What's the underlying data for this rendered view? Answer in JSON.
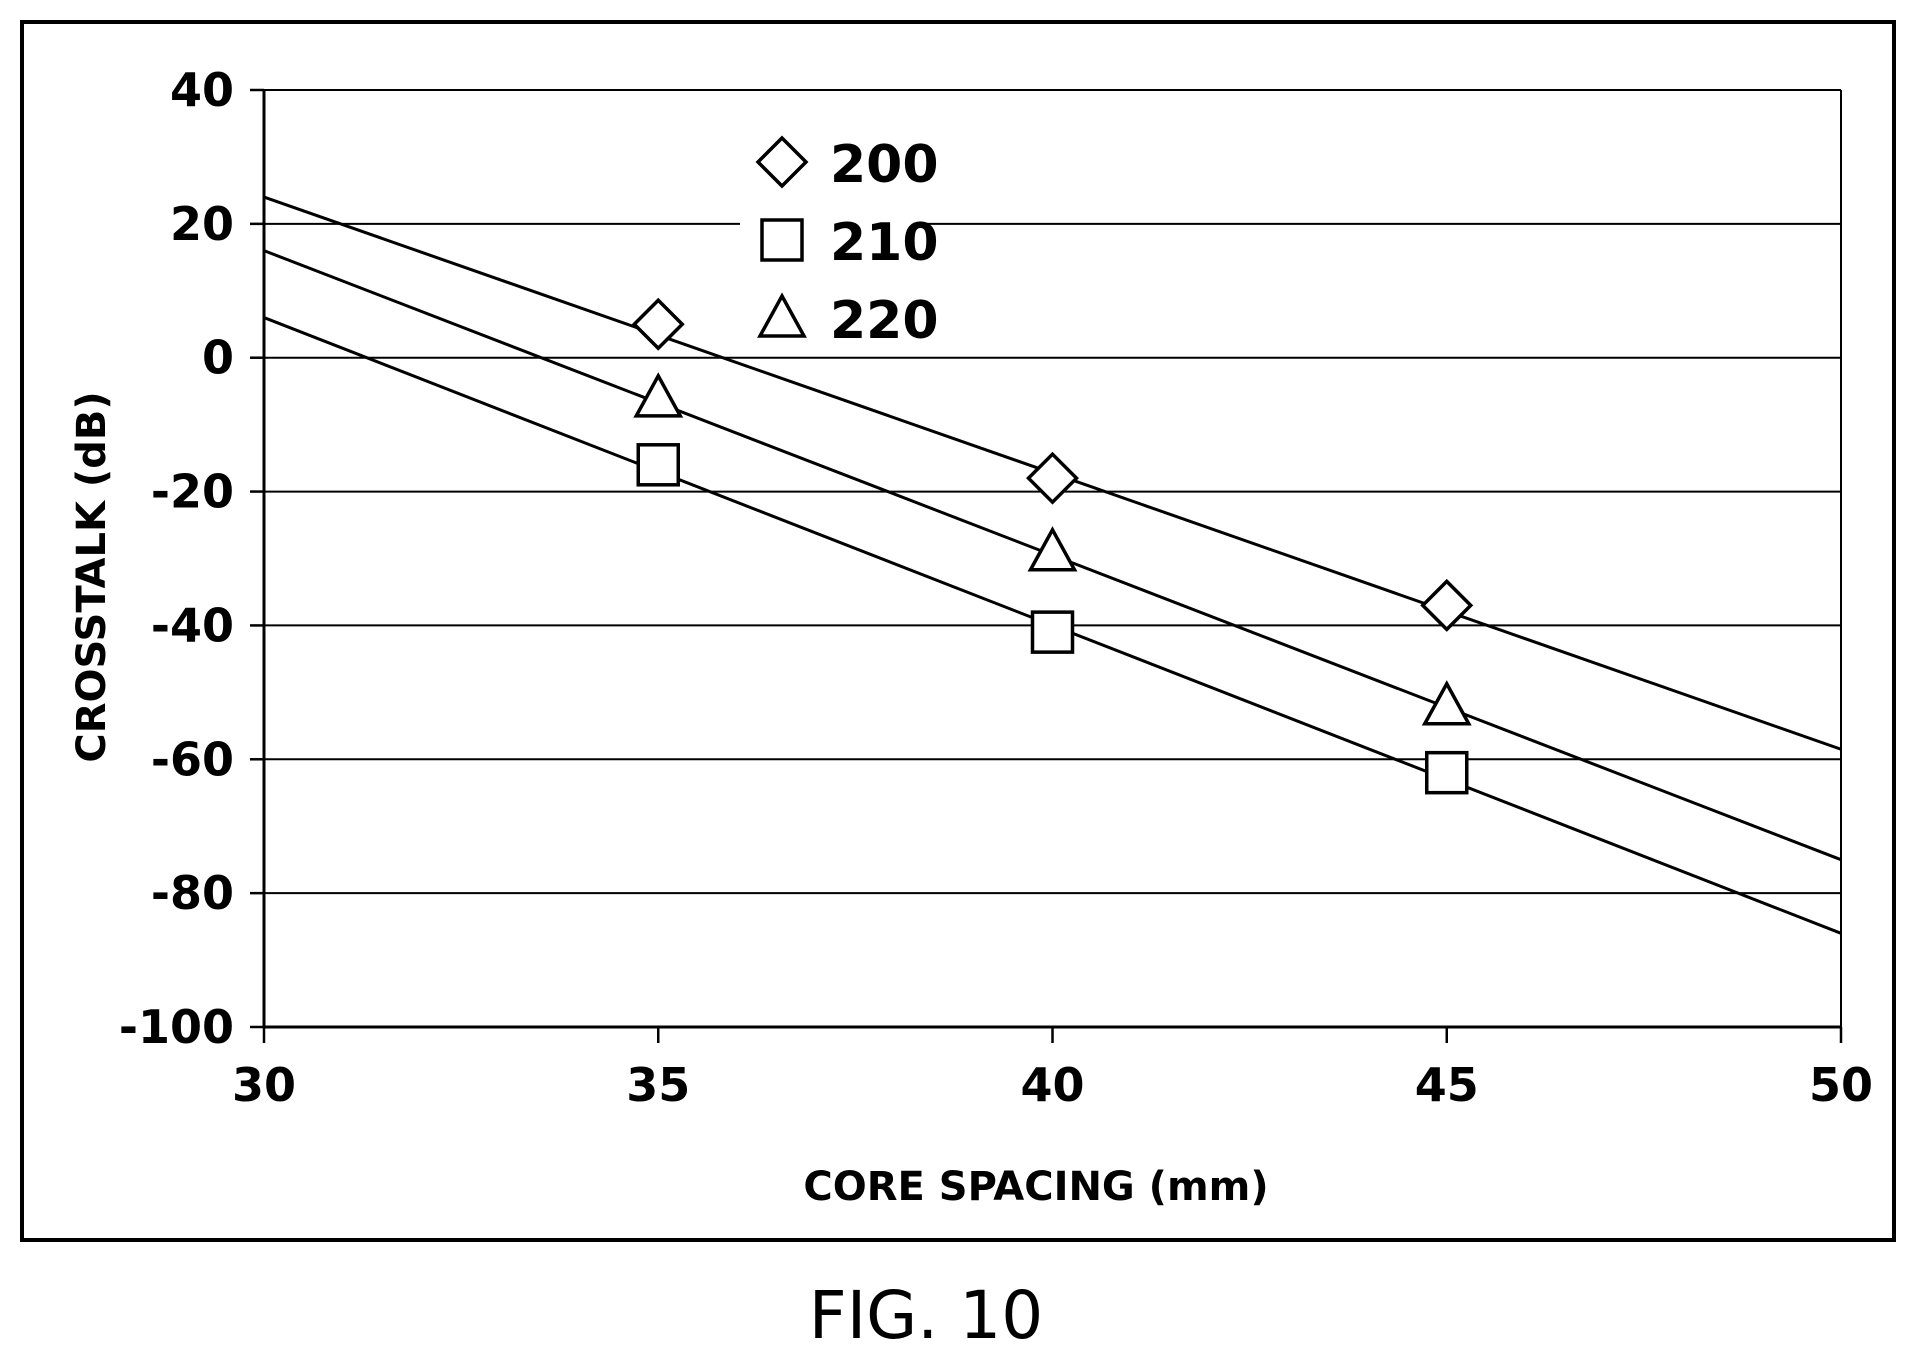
{
  "figure_label": "FIG. 10",
  "chart_data": {
    "type": "scatter",
    "xlabel": "CORE SPACING (mm)",
    "ylabel": "CROSSTALK (dB)",
    "xlim": [
      30,
      50
    ],
    "ylim": [
      -100,
      40
    ],
    "xticks": [
      "30",
      "35",
      "40",
      "45",
      "50"
    ],
    "yticks": [
      "40",
      "20",
      "0",
      "-20",
      "-40",
      "-60",
      "-80",
      "-100"
    ],
    "grid": "horizontal",
    "legend_position": "top-left",
    "series": [
      {
        "name": "200",
        "marker": "diamond",
        "points": [
          {
            "x": 35,
            "y": 5
          },
          {
            "x": 40,
            "y": -18
          },
          {
            "x": 45,
            "y": -37
          }
        ],
        "trendline": {
          "x": [
            30,
            50
          ],
          "y": [
            24,
            -58.5
          ]
        }
      },
      {
        "name": "210",
        "marker": "square",
        "points": [
          {
            "x": 35,
            "y": -16
          },
          {
            "x": 40,
            "y": -41
          },
          {
            "x": 45,
            "y": -62
          }
        ],
        "trendline": {
          "x": [
            30,
            50
          ],
          "y": [
            6,
            -86
          ]
        }
      },
      {
        "name": "220",
        "marker": "triangle",
        "points": [
          {
            "x": 35,
            "y": -6
          },
          {
            "x": 40,
            "y": -29
          },
          {
            "x": 45,
            "y": -52
          }
        ],
        "trendline": {
          "x": [
            30,
            50
          ],
          "y": [
            16,
            -75
          ]
        }
      }
    ]
  }
}
